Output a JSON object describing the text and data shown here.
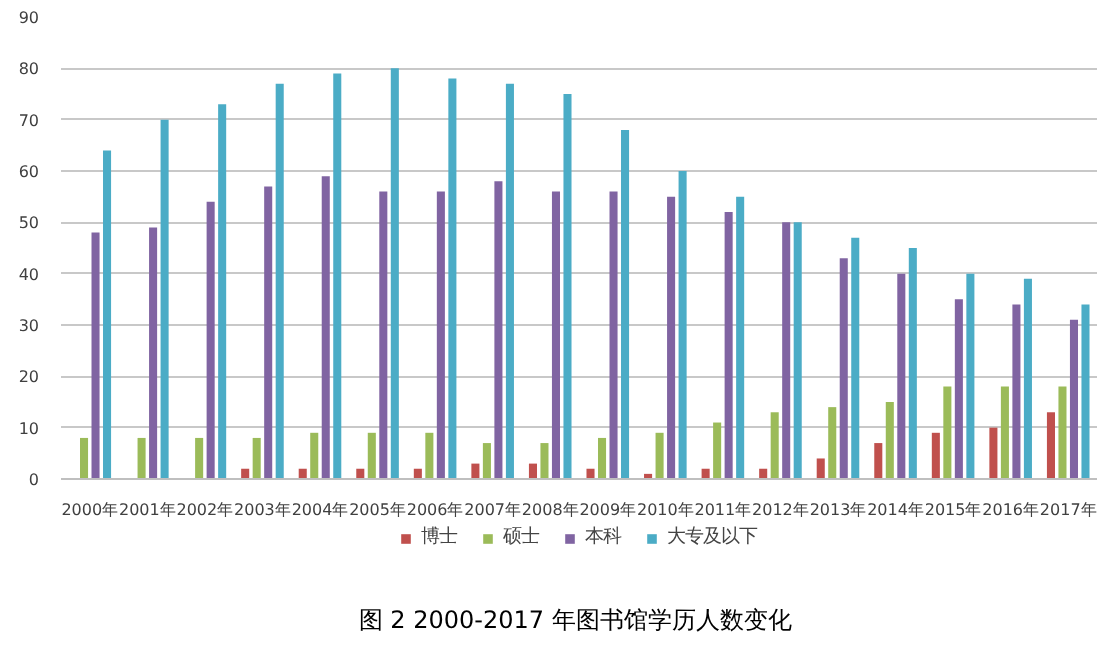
{
  "chart_data": {
    "type": "bar",
    "title": "图 2  2000-2017 年图书馆学历人数变化",
    "categories": [
      "2000年",
      "2001年",
      "2002年",
      "2003年",
      "2004年",
      "2005年",
      "2006年",
      "2007年",
      "2008年",
      "2009年",
      "2010年",
      "2011年",
      "2012年",
      "2013年",
      "2014年",
      "2015年",
      "2016年",
      "2017年"
    ],
    "series": [
      {
        "name": "博士",
        "color": "#c0504d",
        "values": [
          0,
          0,
          0,
          2,
          2,
          2,
          2,
          3,
          3,
          2,
          1,
          2,
          2,
          4,
          7,
          9,
          10,
          13
        ]
      },
      {
        "name": "硕士",
        "color": "#9bbb59",
        "values": [
          8,
          8,
          8,
          8,
          9,
          9,
          9,
          7,
          7,
          8,
          9,
          11,
          13,
          14,
          15,
          18,
          18,
          18
        ]
      },
      {
        "name": "本科",
        "color": "#8064a2",
        "values": [
          48,
          49,
          54,
          57,
          59,
          56,
          56,
          58,
          56,
          56,
          55,
          52,
          50,
          43,
          40,
          35,
          34,
          31
        ]
      },
      {
        "name": "大专及以下",
        "color": "#4bacc6",
        "values": [
          64,
          70,
          73,
          77,
          79,
          80,
          78,
          77,
          75,
          68,
          60,
          55,
          50,
          47,
          45,
          40,
          39,
          34
        ]
      }
    ],
    "ylim": [
      0,
      90
    ],
    "yticks": [
      0,
      10,
      20,
      30,
      40,
      50,
      60,
      70,
      80,
      90
    ],
    "grid": "y",
    "legend": "bottom"
  }
}
